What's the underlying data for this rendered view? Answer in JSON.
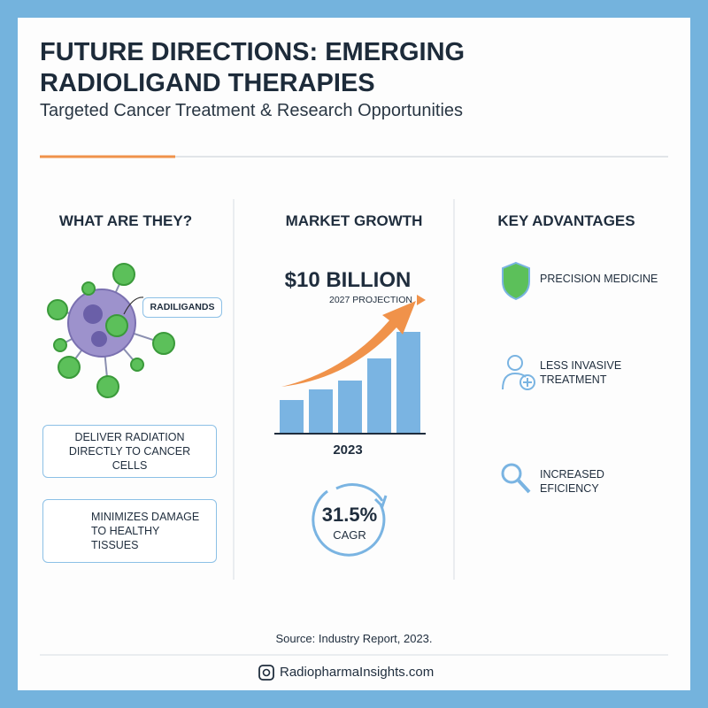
{
  "header": {
    "title": "FUTURE DIRECTIONS: EMERGING RADIOLIGAND THERAPIES",
    "subtitle": "Targeted Cancer Treatment & Research Opportunities"
  },
  "what_are_they": {
    "heading": "WHAT ARE THEY?",
    "callout": "RADILIGANDS",
    "cards": [
      "DELIVER RADIATION DIRECTLY TO CANCER CELLS",
      "MINIMIZES DAMAGE TO HEALTHY TISSUES"
    ]
  },
  "market_growth": {
    "heading": "MARKET GROWTH",
    "value": "$10 BILLION",
    "projection": "2027 PROJECTION",
    "year": "2023",
    "cagr": "31.5%",
    "cagr_label": "CAGR"
  },
  "key_advantages": {
    "heading": "KEY ADVANTAGES",
    "items": [
      "PRECISION MEDICINE",
      "LESS INVASIVE TREATMENT",
      "INCREASED EFICIENCY"
    ]
  },
  "footer": {
    "source": "Source: Industry Report, 2023.",
    "site": "RadiopharmaInsights.com"
  }
}
